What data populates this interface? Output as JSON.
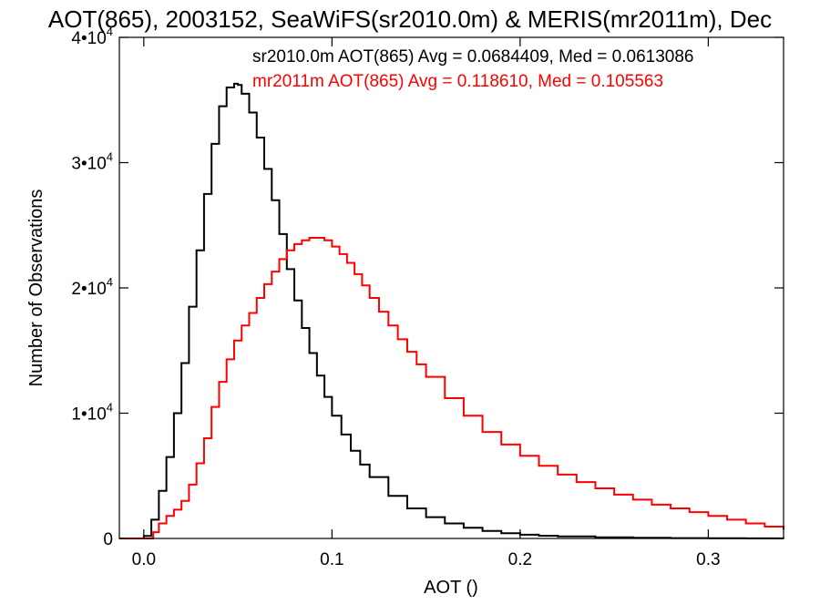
{
  "chart_data": {
    "type": "line",
    "title": "AOT(865), 2003152, SeaWiFS(sr2010.0m) & MERIS(mr2011m), Dec",
    "xlabel": "AOT ()",
    "ylabel": "Number of Observations",
    "xlim": [
      -0.013,
      0.34
    ],
    "ylim": [
      0,
      40000
    ],
    "x_ticks": [
      {
        "value": 0.0,
        "label": "0.0"
      },
      {
        "value": 0.1,
        "label": "0.1"
      },
      {
        "value": 0.2,
        "label": "0.2"
      },
      {
        "value": 0.3,
        "label": "0.3"
      }
    ],
    "y_ticks": [
      {
        "value": 0,
        "base": "0",
        "exp": ""
      },
      {
        "value": 10000,
        "base": "1•10",
        "exp": "4"
      },
      {
        "value": 20000,
        "base": "2•10",
        "exp": "4"
      },
      {
        "value": 30000,
        "base": "3•10",
        "exp": "4"
      },
      {
        "value": 40000,
        "base": "4•10",
        "exp": "4"
      }
    ],
    "grid": false,
    "legend_position": "top-right",
    "series": [
      {
        "name": "sr2010.0m AOT(865) Avg = 0.0684409, Med = 0.0613086",
        "color": "#000000",
        "x": [
          -0.013,
          0.0,
          0.004,
          0.008,
          0.012,
          0.016,
          0.02,
          0.024,
          0.028,
          0.032,
          0.036,
          0.04,
          0.044,
          0.048,
          0.05,
          0.052,
          0.056,
          0.06,
          0.064,
          0.068,
          0.072,
          0.076,
          0.08,
          0.084,
          0.088,
          0.092,
          0.096,
          0.1,
          0.105,
          0.11,
          0.115,
          0.12,
          0.13,
          0.14,
          0.15,
          0.16,
          0.17,
          0.18,
          0.19,
          0.2,
          0.21,
          0.22,
          0.24,
          0.26,
          0.28,
          0.3,
          0.32,
          0.34
        ],
        "y": [
          0,
          200,
          1500,
          3800,
          6500,
          10000,
          14000,
          18500,
          23000,
          27500,
          31500,
          34500,
          36000,
          36300,
          36200,
          35500,
          34000,
          32000,
          29500,
          27000,
          24300,
          21500,
          19000,
          16800,
          14800,
          13000,
          11300,
          9800,
          8300,
          7000,
          5900,
          4900,
          3400,
          2400,
          1700,
          1200,
          850,
          600,
          420,
          300,
          220,
          160,
          90,
          50,
          30,
          20,
          12,
          8
        ]
      },
      {
        "name": "mr2011m AOT(865) Avg = 0.118610, Med = 0.105563",
        "color": "#ff0000",
        "x": [
          -0.013,
          0.005,
          0.008,
          0.012,
          0.016,
          0.02,
          0.024,
          0.028,
          0.032,
          0.036,
          0.04,
          0.044,
          0.048,
          0.052,
          0.056,
          0.06,
          0.064,
          0.068,
          0.072,
          0.076,
          0.08,
          0.084,
          0.088,
          0.092,
          0.096,
          0.1,
          0.104,
          0.108,
          0.112,
          0.116,
          0.12,
          0.125,
          0.13,
          0.135,
          0.14,
          0.145,
          0.15,
          0.16,
          0.17,
          0.18,
          0.19,
          0.2,
          0.21,
          0.22,
          0.23,
          0.24,
          0.25,
          0.26,
          0.27,
          0.28,
          0.29,
          0.3,
          0.31,
          0.32,
          0.33,
          0.34
        ],
        "y": [
          0,
          500,
          1200,
          1800,
          2300,
          3000,
          4300,
          6000,
          8000,
          10500,
          12500,
          14300,
          15800,
          17000,
          18000,
          19200,
          20300,
          21300,
          22300,
          23000,
          23500,
          23800,
          24000,
          24000,
          23800,
          23300,
          22700,
          22000,
          21100,
          20200,
          19200,
          18100,
          17000,
          15900,
          14900,
          13900,
          12900,
          11200,
          9800,
          8500,
          7500,
          6600,
          5800,
          5100,
          4500,
          4000,
          3500,
          3100,
          2700,
          2400,
          2100,
          1800,
          1500,
          1200,
          950,
          700
        ]
      }
    ]
  }
}
